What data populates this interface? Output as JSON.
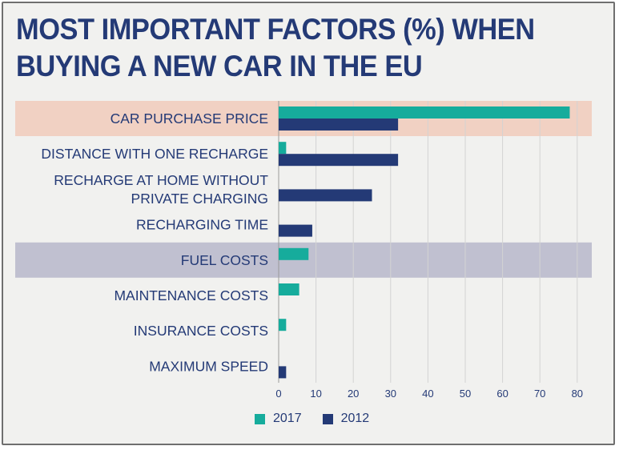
{
  "title_lines": [
    "MOST IMPORTANT FACTORS (%) WHEN",
    "BUYING A NEW CAR IN THE EU"
  ],
  "colors": {
    "s2017": "#16ac9c",
    "s2012": "#243a76",
    "highlight_price": "#f1d1c3",
    "highlight_fuel": "#c0c0d0",
    "text": "#243a76"
  },
  "chart_data": {
    "type": "bar",
    "orientation": "horizontal",
    "title": "MOST IMPORTANT FACTORS (%) WHEN BUYING A NEW CAR IN THE EU",
    "categories": [
      [
        "CAR PURCHASE PRICE"
      ],
      [
        "DISTANCE WITH ONE RECHARGE"
      ],
      [
        "RECHARGE AT HOME WITHOUT",
        "PRIVATE CHARGING"
      ],
      [
        "RECHARGING TIME"
      ],
      [
        "FUEL COSTS"
      ],
      [
        "MAINTENANCE COSTS"
      ],
      [
        "INSURANCE COSTS"
      ],
      [
        "MAXIMUM SPEED"
      ]
    ],
    "series": [
      {
        "name": "2017",
        "values": [
          78,
          2,
          0,
          0,
          8,
          5.5,
          2,
          0
        ]
      },
      {
        "name": "2012",
        "values": [
          32,
          32,
          25,
          9,
          0,
          0,
          0,
          2
        ]
      }
    ],
    "highlighted": [
      "CAR PURCHASE PRICE",
      "FUEL COSTS"
    ],
    "xlim": [
      0,
      84
    ],
    "xticks": [
      0,
      10,
      20,
      30,
      40,
      50,
      60,
      70,
      80
    ],
    "xlabel": "",
    "ylabel": "",
    "grid": "vertical",
    "legend": "bottom"
  }
}
